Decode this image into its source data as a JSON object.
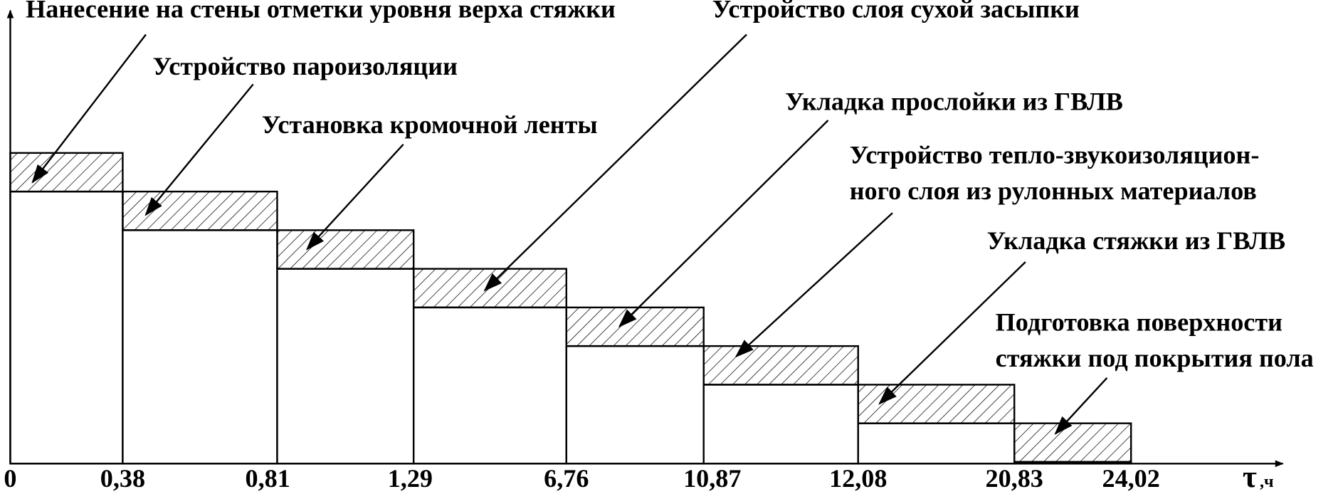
{
  "tasks": [
    {
      "lines": [
        "Нанесение на стены отметки уровня верха стяжки"
      ]
    },
    {
      "lines": [
        "Устройство пароизоляции"
      ]
    },
    {
      "lines": [
        "Установка кромочной ленты"
      ]
    },
    {
      "lines": [
        "Устройство слоя сухой засыпки"
      ]
    },
    {
      "lines": [
        "Укладка прослойки из ГВЛВ"
      ]
    },
    {
      "lines": [
        "Устройство тепло-звукоизоляцион-",
        "ного слоя из рулонных материалов"
      ]
    },
    {
      "lines": [
        "Укладка стяжки из ГВЛВ"
      ]
    },
    {
      "lines": [
        "Подготовка поверхности",
        "стяжки под покрытия пола"
      ]
    }
  ],
  "axis": {
    "ticks": [
      "0",
      "0,38",
      "0,81",
      "1,29",
      "6,76",
      "10,87",
      "12,08",
      "20,83",
      "24,02"
    ],
    "label": "τ",
    "unit": ",ч"
  }
}
